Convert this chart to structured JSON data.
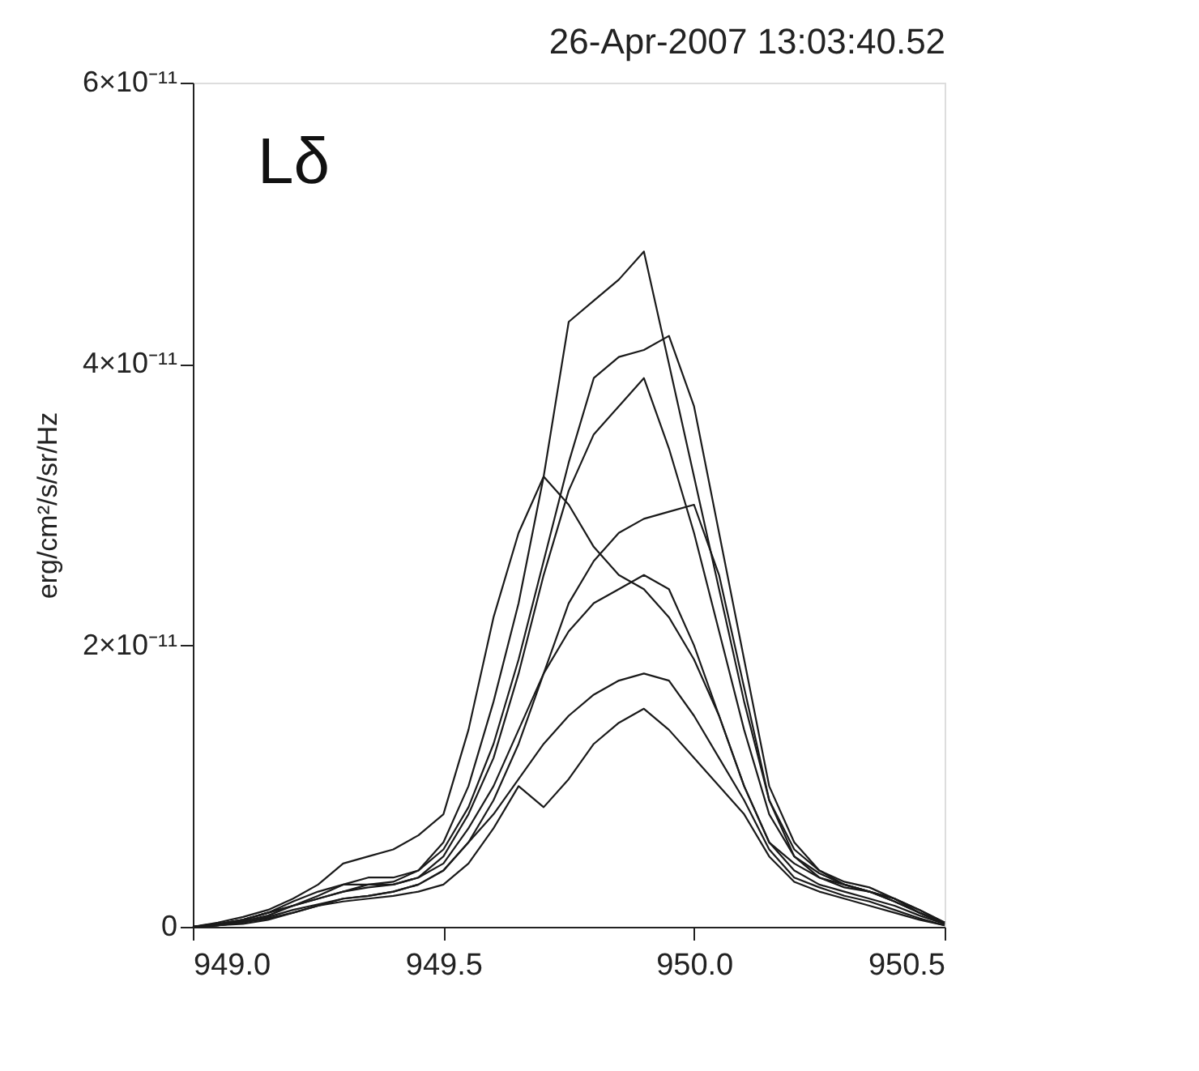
{
  "chart_data": {
    "type": "line",
    "title": "26-Apr-2007   13:03:40.52",
    "ylabel": "erg/cm²/s/sr/Hz",
    "annotations": [
      "Lδ"
    ],
    "x": [
      949.0,
      949.05,
      949.1,
      949.15,
      949.2,
      949.25,
      949.3,
      949.35,
      949.4,
      949.45,
      949.5,
      949.55,
      949.6,
      949.65,
      949.7,
      949.75,
      949.8,
      949.85,
      949.9,
      949.95,
      950.0,
      950.05,
      950.1,
      950.15,
      950.2,
      950.25,
      950.3,
      950.35,
      950.4,
      950.45,
      950.5
    ],
    "xlim": [
      949.0,
      950.5
    ],
    "xticks": [
      {
        "value": 949.0,
        "label": "949.0"
      },
      949.5,
      {
        "value": 950.0,
        "label": "950.0"
      },
      950.5
    ],
    "ylim": [
      0,
      6e-11
    ],
    "yticks": [
      {
        "value": 0,
        "label": "0"
      },
      {
        "value": 2e-11,
        "label": "2×10⁻¹¹"
      },
      {
        "value": 4e-11,
        "label": "4×10⁻¹¹"
      },
      {
        "value": 6e-11,
        "label": "6×10⁻¹¹"
      }
    ],
    "grid": false,
    "legend": false,
    "marker": "none",
    "line_style": "solid",
    "series": [
      {
        "color": "#1a1a1a",
        "values": [
          0,
          2e-13,
          5e-13,
          1e-12,
          1.8e-12,
          2.5e-12,
          3e-12,
          3.5e-12,
          3.5e-12,
          4e-12,
          6e-12,
          1e-11,
          1.6e-11,
          2.3e-11,
          3.2e-11,
          4.3e-11,
          4.45e-11,
          4.6e-11,
          4.8e-11,
          4e-11,
          3.2e-11,
          2.4e-11,
          1.6e-11,
          9e-12,
          5.5e-12,
          4e-12,
          3e-12,
          2.5e-12,
          2e-12,
          1.2e-12,
          3e-13
        ]
      },
      {
        "color": "#1a1a1a",
        "values": [
          0,
          2e-13,
          5e-13,
          1e-12,
          1.5e-12,
          2.2e-12,
          3e-12,
          3e-12,
          3.2e-12,
          4e-12,
          5.5e-12,
          8.5e-12,
          1.3e-11,
          1.9e-11,
          2.6e-11,
          3.3e-11,
          3.9e-11,
          4.05e-11,
          4.1e-11,
          4.2e-11,
          3.7e-11,
          2.8e-11,
          1.9e-11,
          1e-11,
          6e-12,
          4e-12,
          3.2e-12,
          2.8e-12,
          2e-12,
          1.2e-12,
          3e-13
        ]
      },
      {
        "color": "#1a1a1a",
        "values": [
          0,
          1e-13,
          4e-13,
          8e-13,
          1.5e-12,
          2e-12,
          2.5e-12,
          3e-12,
          3e-12,
          3.5e-12,
          5e-12,
          8e-12,
          1.2e-11,
          1.8e-11,
          2.5e-11,
          3.1e-11,
          3.5e-11,
          3.7e-11,
          3.9e-11,
          3.4e-11,
          2.8e-11,
          2.1e-11,
          1.4e-11,
          8e-12,
          5e-12,
          3.8e-12,
          3e-12,
          2.5e-12,
          1.8e-12,
          1e-12,
          2e-13
        ]
      },
      {
        "color": "#1a1a1a",
        "values": [
          0,
          3e-13,
          7e-13,
          1.2e-12,
          2e-12,
          3e-12,
          4.5e-12,
          5e-12,
          5.5e-12,
          6.5e-12,
          8e-12,
          1.4e-11,
          2.2e-11,
          2.8e-11,
          3.2e-11,
          3e-11,
          2.7e-11,
          2.5e-11,
          2.4e-11,
          2.2e-11,
          1.9e-11,
          1.5e-11,
          1e-11,
          6e-12,
          4.5e-12,
          3.5e-12,
          3e-12,
          2.5e-12,
          1.8e-12,
          1e-12,
          3e-13
        ]
      },
      {
        "color": "#1a1a1a",
        "values": [
          0,
          1e-13,
          3e-13,
          6e-13,
          1e-12,
          1.5e-12,
          2e-12,
          2.2e-12,
          2.5e-12,
          3e-12,
          4e-12,
          6e-12,
          9e-12,
          1.3e-11,
          1.8e-11,
          2.3e-11,
          2.6e-11,
          2.8e-11,
          2.9e-11,
          2.95e-11,
          3e-11,
          2.5e-11,
          1.7e-11,
          9e-12,
          5e-12,
          3.5e-12,
          2.8e-12,
          2.5e-12,
          2e-12,
          1e-12,
          2e-13
        ]
      },
      {
        "color": "#1a1a1a",
        "values": [
          0,
          2e-13,
          5e-13,
          1e-12,
          1.5e-12,
          2e-12,
          2.5e-12,
          2.8e-12,
          3e-12,
          3.5e-12,
          4.5e-12,
          7e-12,
          1e-11,
          1.4e-11,
          1.8e-11,
          2.1e-11,
          2.3e-11,
          2.4e-11,
          2.5e-11,
          2.4e-11,
          2e-11,
          1.5e-11,
          1e-11,
          6e-12,
          4e-12,
          3e-12,
          2.5e-12,
          2e-12,
          1.5e-12,
          8e-13,
          2e-13
        ]
      },
      {
        "color": "#1a1a1a",
        "values": [
          0,
          1e-13,
          3e-13,
          7e-13,
          1.2e-12,
          1.6e-12,
          2e-12,
          2.2e-12,
          2.5e-12,
          3e-12,
          4e-12,
          6e-12,
          8e-12,
          1.05e-11,
          1.3e-11,
          1.5e-11,
          1.65e-11,
          1.75e-11,
          1.8e-11,
          1.75e-11,
          1.5e-11,
          1.2e-11,
          9e-12,
          5.5e-12,
          3.5e-12,
          2.8e-12,
          2.2e-12,
          1.8e-12,
          1.2e-12,
          6e-13,
          1e-13
        ]
      },
      {
        "color": "#1a1a1a",
        "values": [
          0,
          1e-13,
          2e-13,
          5e-13,
          1e-12,
          1.5e-12,
          1.8e-12,
          2e-12,
          2.2e-12,
          2.5e-12,
          3e-12,
          4.5e-12,
          7e-12,
          1e-11,
          8.5e-12,
          1.05e-11,
          1.3e-11,
          1.45e-11,
          1.55e-11,
          1.4e-11,
          1.2e-11,
          1e-11,
          8e-12,
          5e-12,
          3.2e-12,
          2.5e-12,
          2e-12,
          1.5e-12,
          1e-12,
          5e-13,
          1e-13
        ]
      }
    ]
  }
}
